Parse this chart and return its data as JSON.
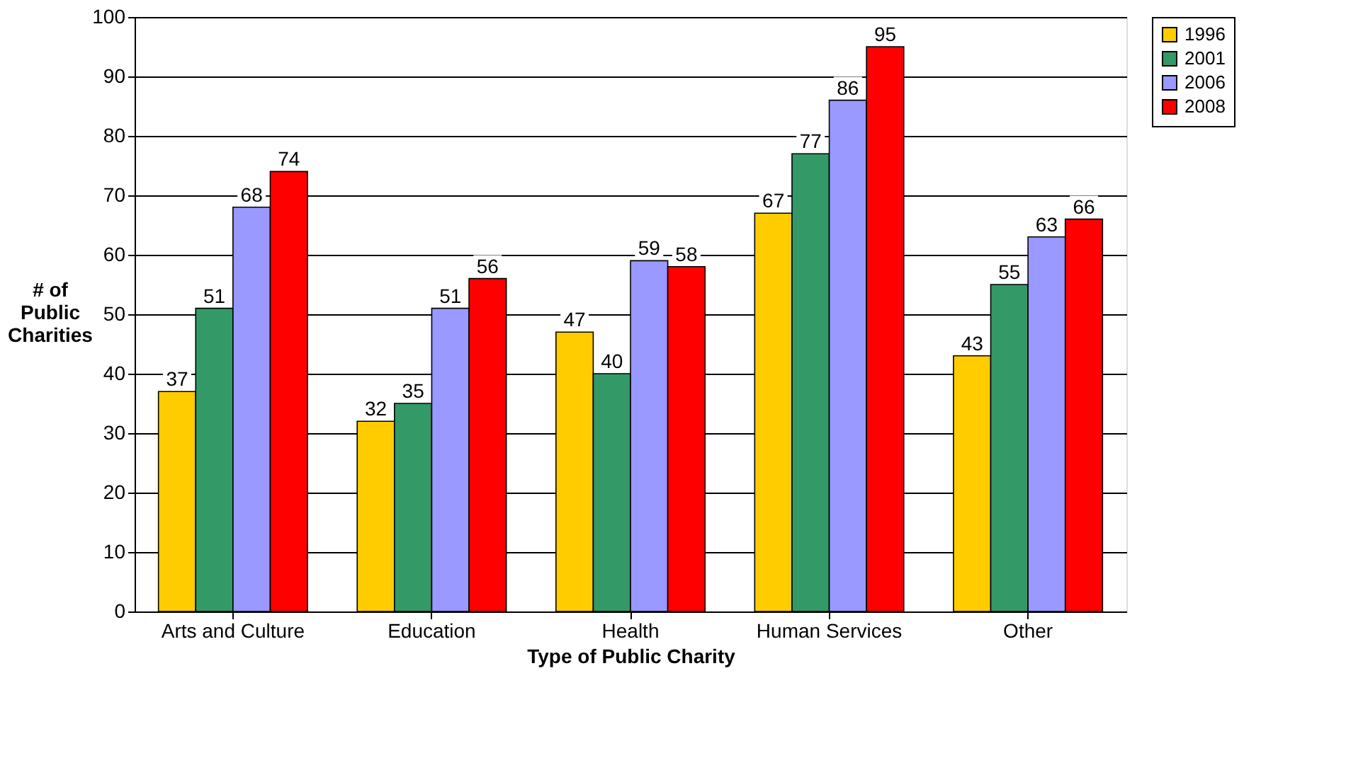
{
  "chart_data": {
    "type": "bar",
    "xlabel": "Type of Public Charity",
    "ylabel": "# of Public Charities",
    "categories": [
      "Arts and Culture",
      "Education",
      "Health",
      "Human Services",
      "Other"
    ],
    "series": [
      {
        "name": "1996",
        "color": "#ffcc00",
        "values": [
          37,
          32,
          47,
          67,
          43
        ]
      },
      {
        "name": "2001",
        "color": "#339966",
        "values": [
          51,
          35,
          40,
          77,
          55
        ]
      },
      {
        "name": "2006",
        "color": "#9999ff",
        "values": [
          68,
          51,
          59,
          86,
          63
        ]
      },
      {
        "name": "2008",
        "color": "#ff0000",
        "values": [
          74,
          56,
          58,
          95,
          66
        ]
      }
    ],
    "ylim": [
      0,
      100
    ],
    "yticks": [
      0,
      10,
      20,
      30,
      40,
      50,
      60,
      70,
      80,
      90,
      100
    ],
    "grid": "y",
    "legend": "right",
    "data_labels": true
  }
}
